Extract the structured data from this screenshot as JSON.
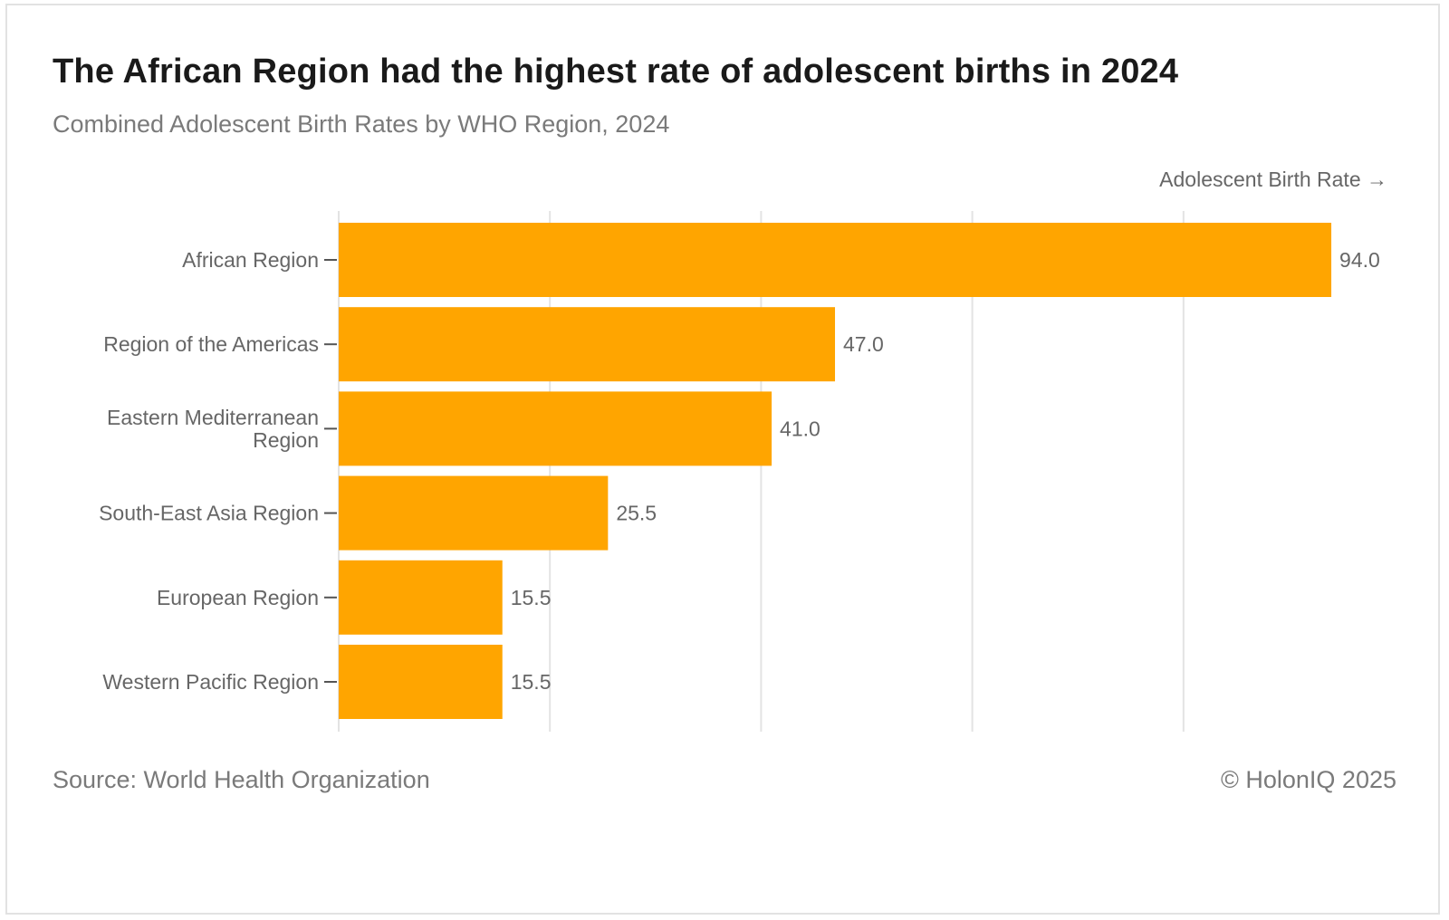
{
  "header": {
    "title": "The African Region had the highest rate of adolescent births in 2024",
    "subtitle": "Combined Adolescent Birth Rates by WHO Region, 2024"
  },
  "footer": {
    "source": "Source: World Health Organization",
    "copyright": "© HolonIQ 2025"
  },
  "chart_data": {
    "type": "bar",
    "orientation": "horizontal",
    "xlabel": "Adolescent Birth Rate →",
    "categories": [
      [
        "African Region"
      ],
      [
        "Region of the Americas"
      ],
      [
        "Eastern Mediterranean",
        "Region"
      ],
      [
        "South-East Asia Region"
      ],
      [
        "European Region"
      ],
      [
        "Western Pacific Region"
      ]
    ],
    "values": [
      94.0,
      47.0,
      41.0,
      25.5,
      15.5,
      15.5
    ],
    "value_labels": [
      "94.0",
      "47.0",
      "41.0",
      "25.5",
      "15.5",
      "15.5"
    ],
    "xlim": [
      0,
      100
    ],
    "grid_x": [
      0,
      20,
      40,
      60,
      80
    ],
    "grid": true,
    "x_tick_labels_visible": false,
    "bar_color": "#FFA500",
    "grid_color": "#e3e3e3",
    "label_color": "#666666"
  }
}
